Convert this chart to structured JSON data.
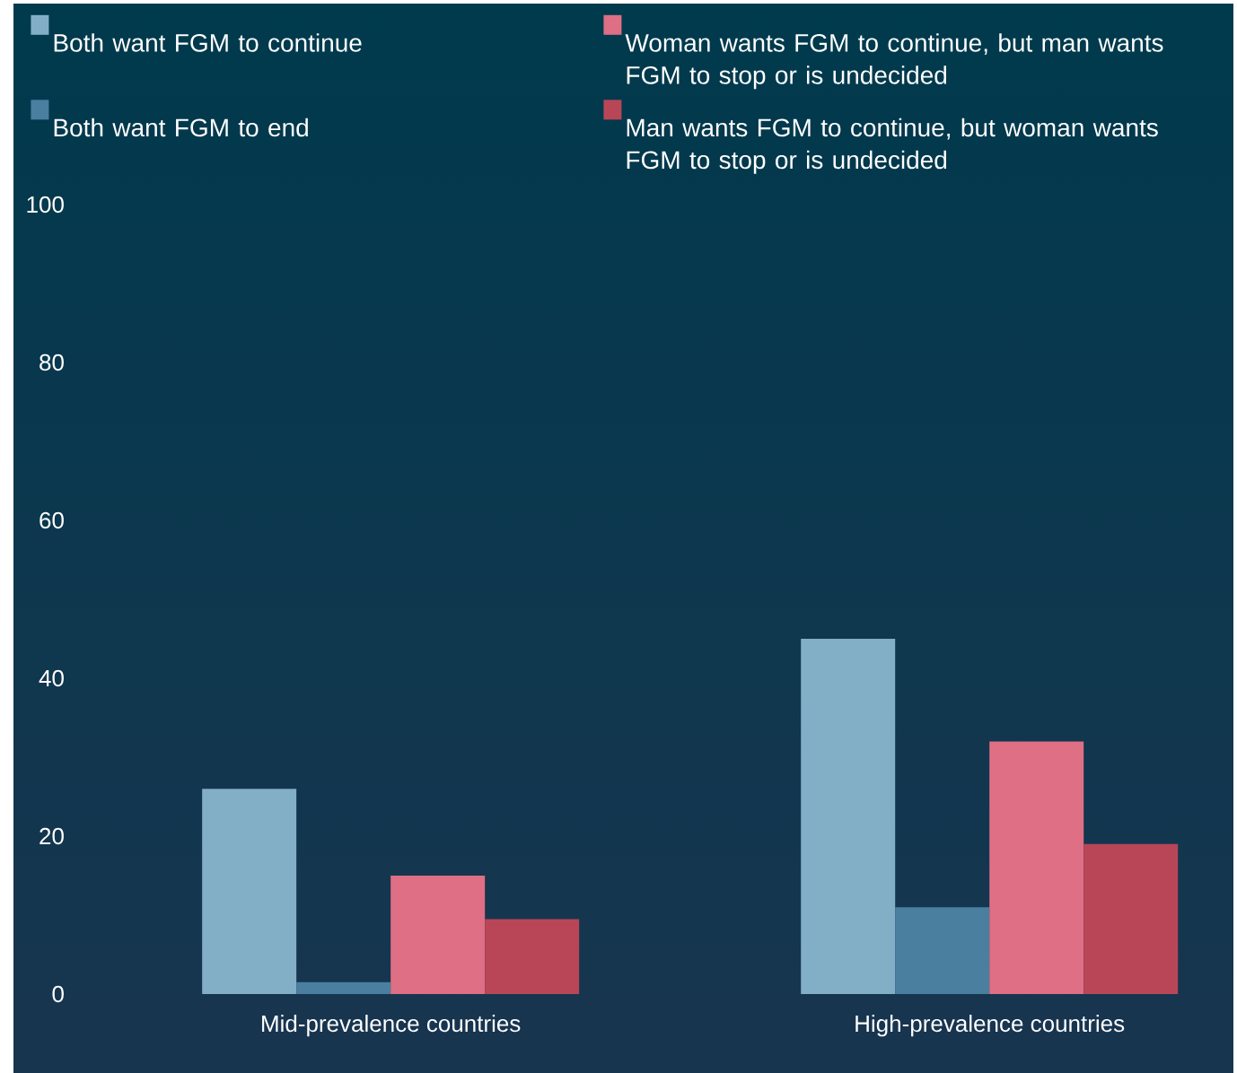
{
  "chart_data": {
    "type": "bar",
    "categories": [
      "Mid-prevalence countries",
      "High-prevalence countries"
    ],
    "series": [
      {
        "name": "Both want FGM to continue",
        "color": "#82aec6",
        "values": [
          26,
          45
        ]
      },
      {
        "name": "Both want FGM to end",
        "color": "#4a7fa0",
        "values": [
          1.5,
          11
        ]
      },
      {
        "name": "Woman wants FGM to continue, but man wants FGM to stop or is undecided",
        "color": "#de6f84",
        "values": [
          15,
          32
        ]
      },
      {
        "name": "Man wants FGM to continue, but woman wants FGM to stop or is undecided",
        "color": "#b94657",
        "values": [
          9.5,
          19
        ]
      }
    ],
    "ylim": [
      0,
      100
    ],
    "yticks": [
      0,
      20,
      40,
      60,
      80,
      100
    ],
    "legend": "top"
  }
}
